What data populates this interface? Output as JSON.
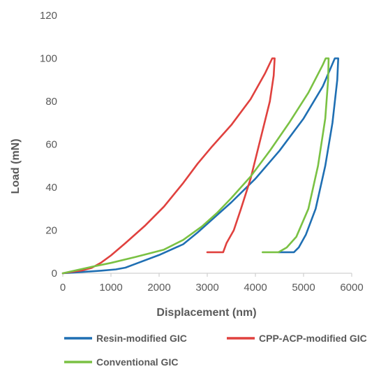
{
  "chart_data": {
    "type": "line",
    "title": "",
    "xlabel": "Displacement (nm)",
    "ylabel": "Load (mN)",
    "xlim": [
      0,
      6000
    ],
    "ylim": [
      0,
      120
    ],
    "xticks": [
      0,
      1000,
      2000,
      3000,
      4000,
      5000,
      6000
    ],
    "yticks": [
      0,
      20,
      40,
      60,
      80,
      100,
      120
    ],
    "grid": false,
    "legend_position": "bottom",
    "series": [
      {
        "name": "Resin-modified GIC",
        "color": "#1f6fb3",
        "points": [
          [
            0,
            0
          ],
          [
            400,
            0.6
          ],
          [
            800,
            1.2
          ],
          [
            1100,
            1.8
          ],
          [
            1300,
            2.6
          ],
          [
            1500,
            4.3
          ],
          [
            2000,
            8.5
          ],
          [
            2500,
            13.5
          ],
          [
            2800,
            19
          ],
          [
            3100,
            25
          ],
          [
            3500,
            33
          ],
          [
            4000,
            44
          ],
          [
            4500,
            57
          ],
          [
            5000,
            72
          ],
          [
            5400,
            87
          ],
          [
            5650,
            100
          ],
          [
            5720,
            100
          ],
          [
            5700,
            90
          ],
          [
            5600,
            70
          ],
          [
            5450,
            50
          ],
          [
            5250,
            30
          ],
          [
            5050,
            18
          ],
          [
            4900,
            12
          ],
          [
            4800,
            9.8
          ],
          [
            4480,
            9.8
          ]
        ]
      },
      {
        "name": "CPP-ACP-modified GIC",
        "color": "#e0413e",
        "points": [
          [
            0,
            0
          ],
          [
            200,
            0.7
          ],
          [
            400,
            1.3
          ],
          [
            600,
            2.5
          ],
          [
            800,
            5
          ],
          [
            1000,
            8.3
          ],
          [
            1300,
            14
          ],
          [
            1700,
            22
          ],
          [
            2100,
            31
          ],
          [
            2500,
            42
          ],
          [
            2800,
            51
          ],
          [
            3100,
            59
          ],
          [
            3500,
            69
          ],
          [
            3900,
            81
          ],
          [
            4200,
            93
          ],
          [
            4350,
            100
          ],
          [
            4400,
            100
          ],
          [
            4380,
            92
          ],
          [
            4300,
            80
          ],
          [
            4100,
            62
          ],
          [
            3900,
            44
          ],
          [
            3700,
            30
          ],
          [
            3550,
            20
          ],
          [
            3400,
            14
          ],
          [
            3330,
            9.8
          ],
          [
            3000,
            9.8
          ]
        ]
      },
      {
        "name": "Conventional GIC",
        "color": "#7ac143",
        "points": [
          [
            0,
            0
          ],
          [
            300,
            1.5
          ],
          [
            600,
            3
          ],
          [
            1000,
            4.8
          ],
          [
            1500,
            7.5
          ],
          [
            2100,
            11
          ],
          [
            2500,
            15.5
          ],
          [
            2900,
            22
          ],
          [
            3200,
            28
          ],
          [
            3500,
            35
          ],
          [
            3900,
            45
          ],
          [
            4300,
            57
          ],
          [
            4700,
            70
          ],
          [
            5100,
            84
          ],
          [
            5400,
            97
          ],
          [
            5460,
            100
          ],
          [
            5520,
            100
          ],
          [
            5510,
            90
          ],
          [
            5450,
            72
          ],
          [
            5300,
            50
          ],
          [
            5100,
            30
          ],
          [
            4850,
            17
          ],
          [
            4650,
            12
          ],
          [
            4480,
            9.8
          ],
          [
            4150,
            9.8
          ]
        ]
      }
    ]
  }
}
